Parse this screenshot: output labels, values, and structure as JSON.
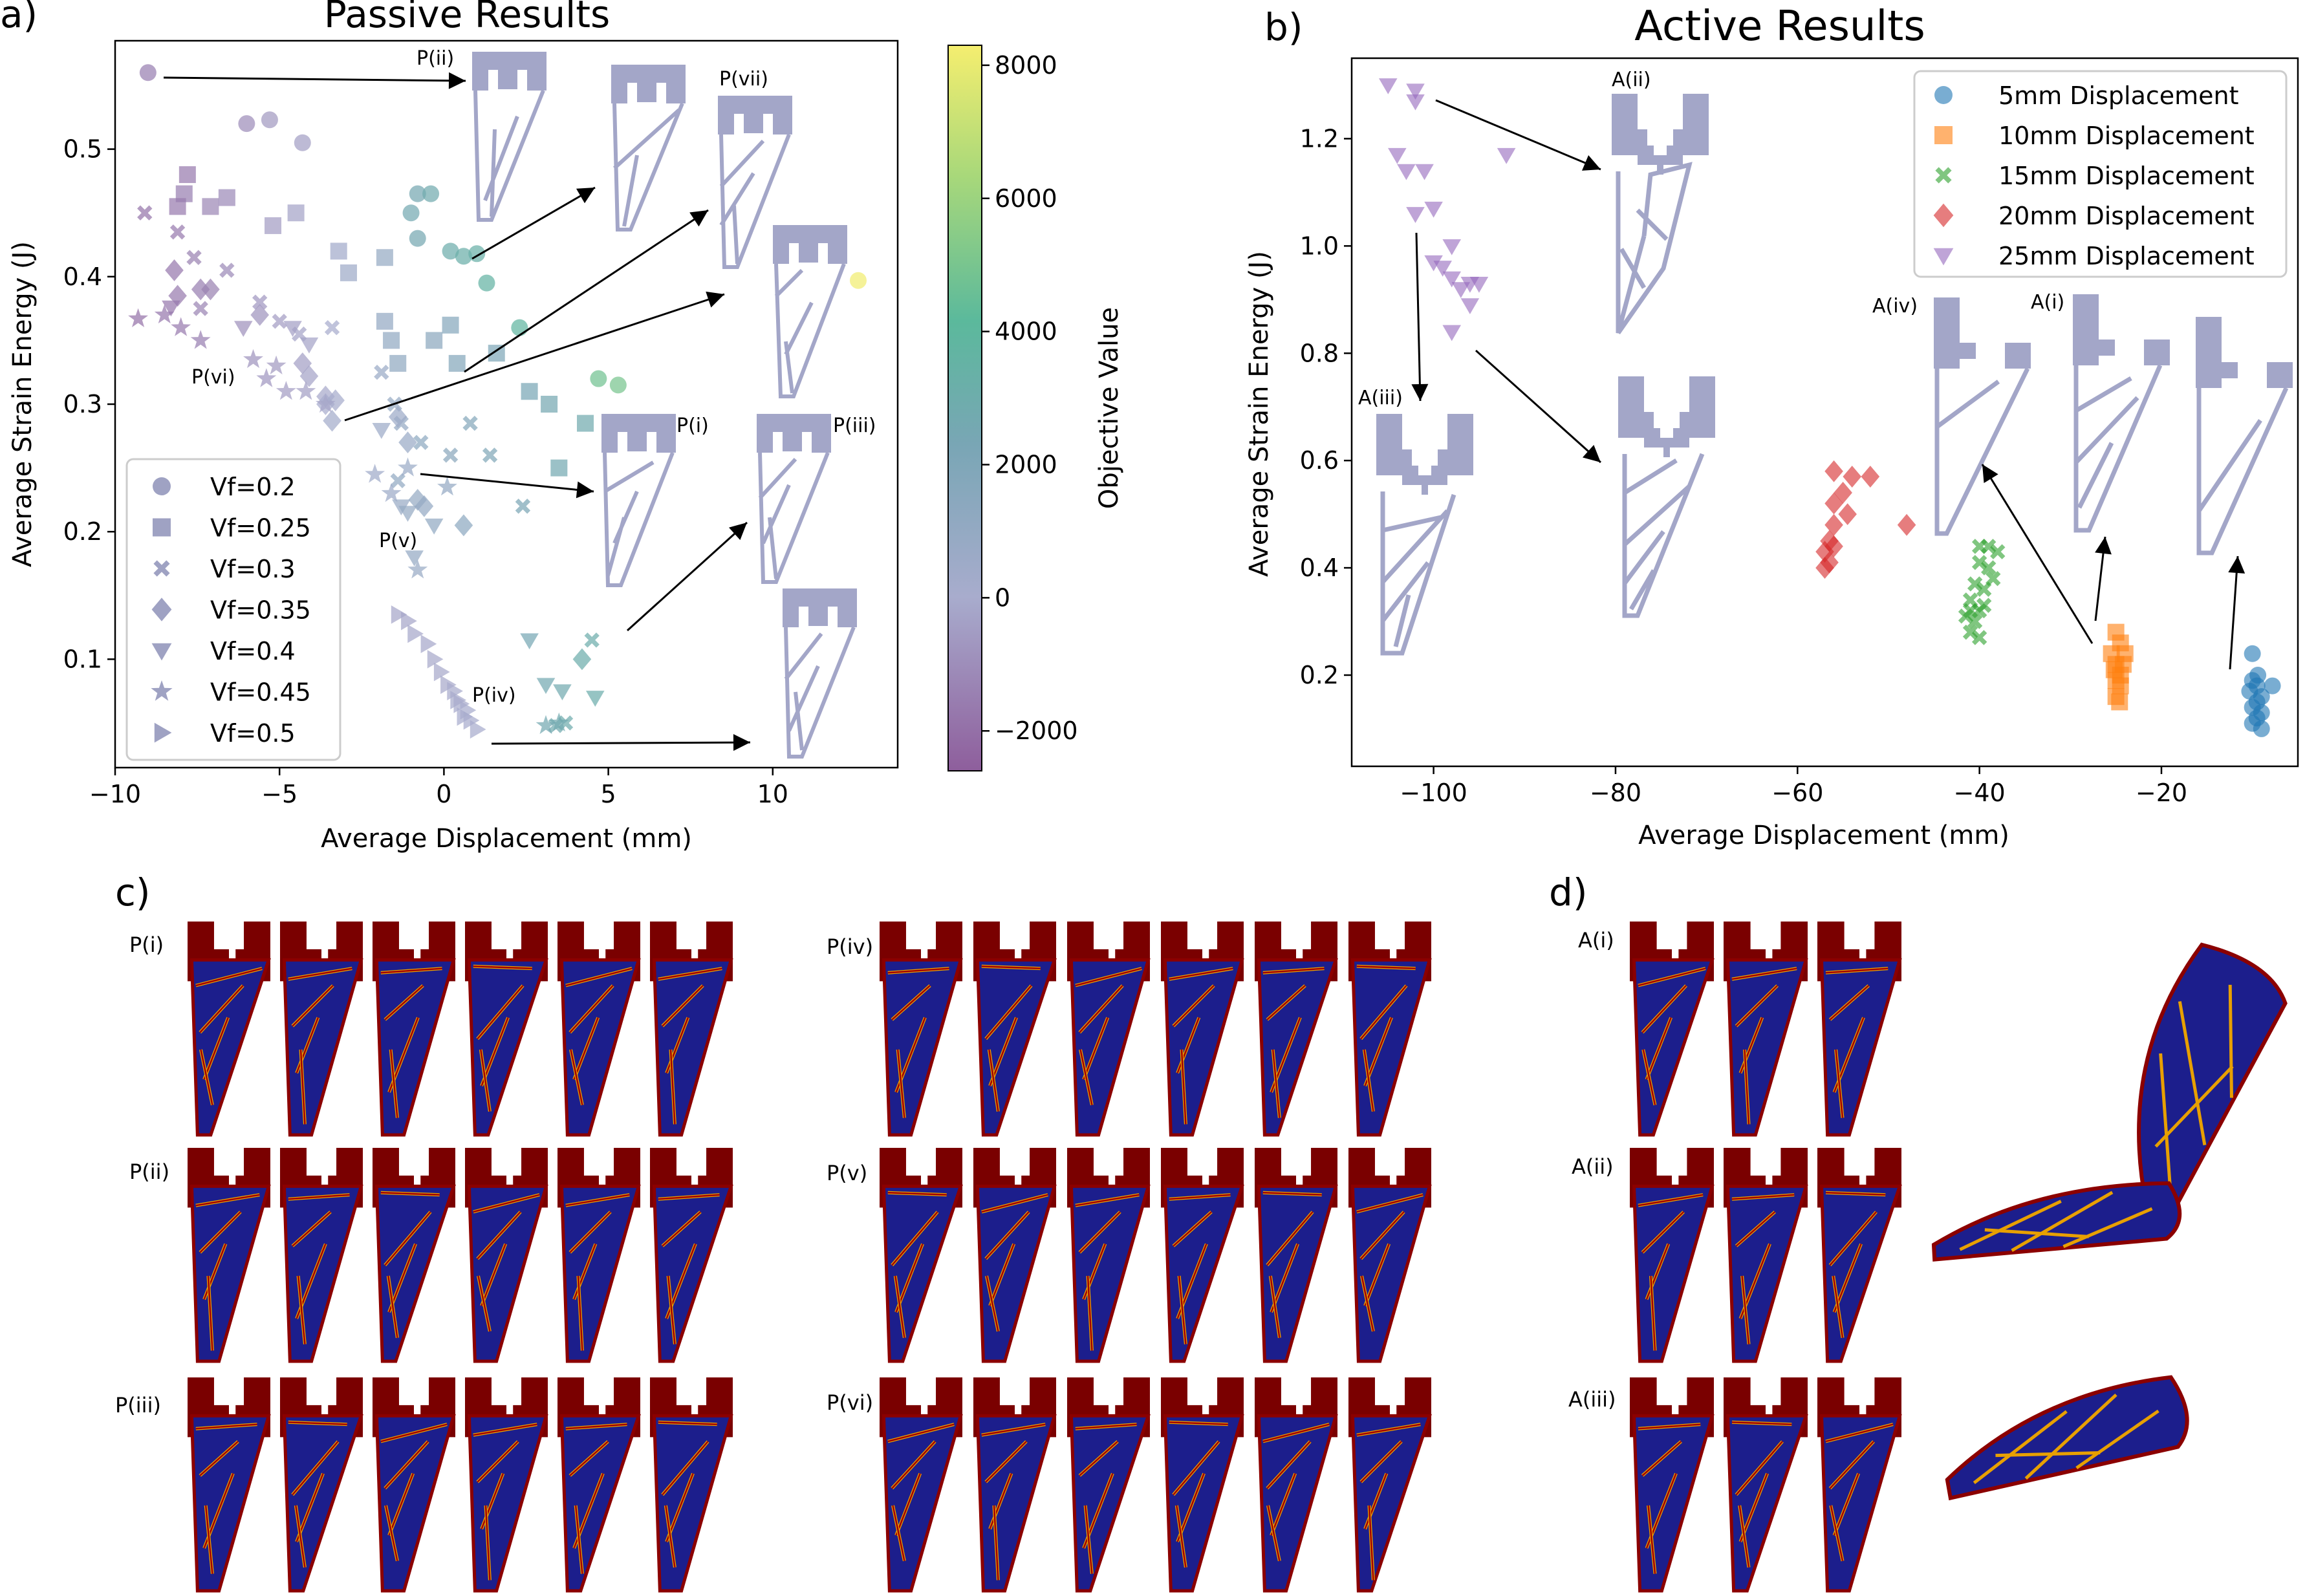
{
  "panels": {
    "a_label": "a)",
    "b_label": "b)",
    "c_label": "c)",
    "d_label": "d)"
  },
  "colorbar": {
    "label": "Objective Value",
    "ticks": [
      8000,
      6000,
      4000,
      2000,
      0,
      -2000
    ],
    "tick_labels": [
      "8000",
      "6000",
      "4000",
      "2000",
      "0",
      "−2000"
    ],
    "range": [
      -2600,
      8300
    ]
  },
  "chart_data": [
    {
      "type": "scatter",
      "title": "Passive Results",
      "xlabel": "Average Displacement (mm)",
      "ylabel": "Average Strain Energy (J)",
      "xlim": [
        -10,
        13.8
      ],
      "ylim": [
        0.015,
        0.585
      ],
      "xticks": [
        -10,
        -5,
        0,
        5,
        10
      ],
      "xtick_labels": [
        "−10",
        "−5",
        "0",
        "5",
        "10"
      ],
      "yticks": [
        0.1,
        0.2,
        0.3,
        0.4,
        0.5
      ],
      "ytick_labels": [
        "0.1",
        "0.2",
        "0.3",
        "0.4",
        "0.5"
      ],
      "legend_position": "lower-left",
      "series": [
        {
          "name": "Vf=0.2",
          "marker": "circle",
          "points": [
            [
              -9,
              0.56,
              -1500
            ],
            [
              -6,
              0.52,
              -1000
            ],
            [
              -5.3,
              0.523,
              -600
            ],
            [
              -4.3,
              0.505,
              -400
            ],
            [
              -1,
              0.45,
              2600
            ],
            [
              -0.8,
              0.465,
              2500
            ],
            [
              -0.4,
              0.465,
              2800
            ],
            [
              -0.8,
              0.43,
              2500
            ],
            [
              0.2,
              0.42,
              3000
            ],
            [
              0.6,
              0.416,
              3200
            ],
            [
              1,
              0.418,
              3300
            ],
            [
              1.3,
              0.395,
              3600
            ],
            [
              2.3,
              0.36,
              3800
            ],
            [
              4.7,
              0.32,
              4800
            ],
            [
              5.3,
              0.315,
              5000
            ],
            [
              12.6,
              0.397,
              8200
            ]
          ]
        },
        {
          "name": "Vf=0.25",
          "marker": "square",
          "points": [
            [
              -7.8,
              0.48,
              -1600
            ],
            [
              -7.9,
              0.465,
              -1500
            ],
            [
              -7.1,
              0.455,
              -1200
            ],
            [
              -6.6,
              0.462,
              -1100
            ],
            [
              -8.1,
              0.455,
              -1600
            ],
            [
              -5.2,
              0.44,
              -500
            ],
            [
              -4.5,
              0.45,
              -300
            ],
            [
              -3.2,
              0.42,
              300
            ],
            [
              -2.9,
              0.403,
              500
            ],
            [
              -1.8,
              0.415,
              900
            ],
            [
              -1.8,
              0.365,
              1000
            ],
            [
              -1.6,
              0.35,
              1100
            ],
            [
              -1.4,
              0.332,
              1200
            ],
            [
              -0.3,
              0.35,
              1400
            ],
            [
              0.2,
              0.362,
              1600
            ],
            [
              0.4,
              0.332,
              1700
            ],
            [
              1.6,
              0.34,
              2000
            ],
            [
              2.6,
              0.31,
              2300
            ],
            [
              3.2,
              0.3,
              2500
            ],
            [
              4.3,
              0.285,
              2800
            ],
            [
              3.5,
              0.25,
              2600
            ]
          ]
        },
        {
          "name": "Vf=0.3",
          "marker": "x",
          "points": [
            [
              -9.1,
              0.45,
              -1800
            ],
            [
              -8.1,
              0.435,
              -1600
            ],
            [
              -7.6,
              0.415,
              -1400
            ],
            [
              -7.4,
              0.375,
              -1300
            ],
            [
              -6.6,
              0.405,
              -1100
            ],
            [
              -5.6,
              0.38,
              -700
            ],
            [
              -5,
              0.365,
              -500
            ],
            [
              -4.4,
              0.355,
              -300
            ],
            [
              -3.4,
              0.36,
              0
            ],
            [
              -1.9,
              0.325,
              700
            ],
            [
              -1.5,
              0.3,
              900
            ],
            [
              -1.3,
              0.285,
              1000
            ],
            [
              -1.4,
              0.24,
              1100
            ],
            [
              -0.7,
              0.27,
              1300
            ],
            [
              0.2,
              0.26,
              1500
            ],
            [
              0.8,
              0.285,
              1700
            ],
            [
              1.4,
              0.26,
              1900
            ],
            [
              2.4,
              0.22,
              2200
            ],
            [
              4.5,
              0.115,
              3000
            ],
            [
              3.7,
              0.05,
              2900
            ],
            [
              3.4,
              0.048,
              2800
            ]
          ]
        },
        {
          "name": "Vf=0.35",
          "marker": "diamond",
          "points": [
            [
              -8.2,
              0.405,
              -1700
            ],
            [
              -8.1,
              0.385,
              -1600
            ],
            [
              -7.4,
              0.39,
              -1500
            ],
            [
              -7.1,
              0.39,
              -1400
            ],
            [
              -5.6,
              0.37,
              -800
            ],
            [
              -4.3,
              0.332,
              -400
            ],
            [
              -4.1,
              0.322,
              -300
            ],
            [
              -3.6,
              0.306,
              -100
            ],
            [
              -3.6,
              0.3,
              0
            ],
            [
              -3.3,
              0.303,
              100
            ],
            [
              -3.4,
              0.287,
              200
            ],
            [
              -1.4,
              0.29,
              600
            ],
            [
              -1.1,
              0.27,
              700
            ],
            [
              -0.8,
              0.225,
              900
            ],
            [
              -0.6,
              0.22,
              1000
            ],
            [
              0.6,
              0.205,
              1300
            ],
            [
              4.2,
              0.1,
              3000
            ]
          ]
        },
        {
          "name": "Vf=0.4",
          "marker": "triangle-down",
          "points": [
            [
              -8.3,
              0.376,
              -1700
            ],
            [
              -6.1,
              0.36,
              -900
            ],
            [
              -4.6,
              0.36,
              -400
            ],
            [
              -4.1,
              0.347,
              -300
            ],
            [
              -1.9,
              0.28,
              600
            ],
            [
              -1.3,
              0.22,
              800
            ],
            [
              -1.1,
              0.215,
              900
            ],
            [
              -0.3,
              0.205,
              1100
            ],
            [
              -0.9,
              0.18,
              1000
            ],
            [
              2.6,
              0.115,
              2400
            ],
            [
              3.6,
              0.075,
              2700
            ],
            [
              3.1,
              0.08,
              2600
            ],
            [
              4.6,
              0.07,
              3000
            ]
          ]
        },
        {
          "name": "Vf=0.45",
          "marker": "star",
          "points": [
            [
              -9.3,
              0.367,
              -1900
            ],
            [
              -8.5,
              0.37,
              -1700
            ],
            [
              -8,
              0.36,
              -1600
            ],
            [
              -7.4,
              0.35,
              -1500
            ],
            [
              -5.8,
              0.335,
              -800
            ],
            [
              -5.4,
              0.32,
              -700
            ],
            [
              -5.1,
              0.33,
              -600
            ],
            [
              -4.8,
              0.31,
              -500
            ],
            [
              -4.2,
              0.31,
              -400
            ],
            [
              -3.6,
              0.3,
              -200
            ],
            [
              -2.1,
              0.245,
              400
            ],
            [
              -1.6,
              0.23,
              600
            ],
            [
              -1.1,
              0.25,
              700
            ],
            [
              0.1,
              0.235,
              1000
            ],
            [
              -0.8,
              0.17,
              800
            ],
            [
              3.5,
              0.05,
              2700
            ],
            [
              3.1,
              0.048,
              2600
            ]
          ]
        },
        {
          "name": "Vf=0.5",
          "marker": "triangle-right",
          "points": [
            [
              -1.4,
              0.135,
              -200
            ],
            [
              -1.1,
              0.13,
              -200
            ],
            [
              -0.9,
              0.12,
              -150
            ],
            [
              -0.5,
              0.112,
              -150
            ],
            [
              -0.3,
              0.1,
              -100
            ],
            [
              -0.1,
              0.09,
              -100
            ],
            [
              0.1,
              0.08,
              -100
            ],
            [
              0.3,
              0.075,
              -50
            ],
            [
              0.4,
              0.068,
              -50
            ],
            [
              0.5,
              0.065,
              -50
            ],
            [
              0.7,
              0.06,
              0
            ],
            [
              0.8,
              0.052,
              0
            ],
            [
              1,
              0.045,
              0
            ],
            [
              0.6,
              0.055,
              0
            ]
          ]
        }
      ],
      "annotations": [
        "P(ii)",
        "P(vii)",
        "P(vi)",
        "P(i)",
        "P(iii)",
        "P(v)",
        "P(iv)"
      ]
    },
    {
      "type": "scatter",
      "title": "Active Results",
      "xlabel": "Average Displacement (mm)",
      "ylabel": "Average Strain Energy (J)",
      "xlim": [
        -109,
        -5
      ],
      "ylim": [
        0.03,
        1.35
      ],
      "xticks": [
        -100,
        -80,
        -60,
        -40,
        -20
      ],
      "xtick_labels": [
        "−100",
        "−80",
        "−60",
        "−40",
        "−20"
      ],
      "yticks": [
        0.2,
        0.4,
        0.6,
        0.8,
        1.0,
        1.2
      ],
      "ytick_labels": [
        "0.2",
        "0.4",
        "0.6",
        "0.8",
        "1.0",
        "1.2"
      ],
      "legend_position": "upper-right",
      "series": [
        {
          "name": "5mm Displacement",
          "marker": "circle",
          "color": "#1f77b4",
          "points": [
            [
              -10,
              0.24
            ],
            [
              -10,
              0.19
            ],
            [
              -9.5,
              0.18
            ],
            [
              -9,
              0.16
            ],
            [
              -9.5,
              0.15
            ],
            [
              -10,
              0.14
            ],
            [
              -9,
              0.13
            ],
            [
              -9.5,
              0.12
            ],
            [
              -9,
              0.1
            ],
            [
              -10,
              0.11
            ],
            [
              -7.8,
              0.18
            ],
            [
              -10.3,
              0.17
            ],
            [
              -9.4,
              0.2
            ]
          ]
        },
        {
          "name": "10mm Displacement",
          "marker": "square",
          "color": "#ff7f0e",
          "points": [
            [
              -25,
              0.28
            ],
            [
              -24.5,
              0.26
            ],
            [
              -25.5,
              0.24
            ],
            [
              -24,
              0.24
            ],
            [
              -25,
              0.22
            ],
            [
              -24.5,
              0.2
            ],
            [
              -25,
              0.19
            ],
            [
              -24.5,
              0.18
            ],
            [
              -25,
              0.16
            ],
            [
              -24.6,
              0.15
            ],
            [
              -25.2,
              0.21
            ],
            [
              -24.2,
              0.22
            ]
          ]
        },
        {
          "name": "15mm Displacement",
          "marker": "x",
          "color": "#2ca02c",
          "points": [
            [
              -40,
              0.44
            ],
            [
              -39,
              0.44
            ],
            [
              -38,
              0.43
            ],
            [
              -40,
              0.41
            ],
            [
              -39,
              0.4
            ],
            [
              -38.5,
              0.38
            ],
            [
              -40.5,
              0.37
            ],
            [
              -39.5,
              0.36
            ],
            [
              -41,
              0.34
            ],
            [
              -40,
              0.32
            ],
            [
              -41.5,
              0.31
            ],
            [
              -40.5,
              0.3
            ],
            [
              -41,
              0.28
            ],
            [
              -40,
              0.27
            ],
            [
              -41,
              0.32
            ],
            [
              -39.5,
              0.33
            ]
          ]
        },
        {
          "name": "20mm Displacement",
          "marker": "diamond",
          "color": "#d62728",
          "points": [
            [
              -56,
              0.58
            ],
            [
              -54,
              0.57
            ],
            [
              -52,
              0.57
            ],
            [
              -55,
              0.54
            ],
            [
              -56,
              0.52
            ],
            [
              -54.5,
              0.5
            ],
            [
              -56,
              0.48
            ],
            [
              -48,
              0.48
            ],
            [
              -56.5,
              0.45
            ],
            [
              -57,
              0.43
            ],
            [
              -56.5,
              0.41
            ],
            [
              -57,
              0.4
            ],
            [
              -56,
              0.44
            ]
          ]
        },
        {
          "name": "25mm Displacement",
          "marker": "triangle-down",
          "color": "#9467bd",
          "points": [
            [
              -105,
              1.3
            ],
            [
              -102,
              1.29
            ],
            [
              -102,
              1.27
            ],
            [
              -104,
              1.17
            ],
            [
              -103,
              1.14
            ],
            [
              -101,
              1.14
            ],
            [
              -92,
              1.17
            ],
            [
              -100,
              1.07
            ],
            [
              -102,
              1.06
            ],
            [
              -98,
              1.0
            ],
            [
              -100,
              0.97
            ],
            [
              -99,
              0.96
            ],
            [
              -98,
              0.94
            ],
            [
              -96,
              0.93
            ],
            [
              -95,
              0.93
            ],
            [
              -96,
              0.89
            ],
            [
              -98,
              0.84
            ],
            [
              -97,
              0.92
            ]
          ]
        }
      ],
      "annotations": [
        "A(ii)",
        "A(iii)",
        "A(iv)",
        "A(i)"
      ]
    }
  ],
  "panel_c": {
    "labels": [
      "P(i)",
      "P(ii)",
      "P(iii)",
      "P(iv)",
      "P(v)",
      "P(vi)"
    ]
  },
  "panel_d": {
    "labels": [
      "A(i)",
      "A(ii)",
      "A(iii)"
    ]
  }
}
